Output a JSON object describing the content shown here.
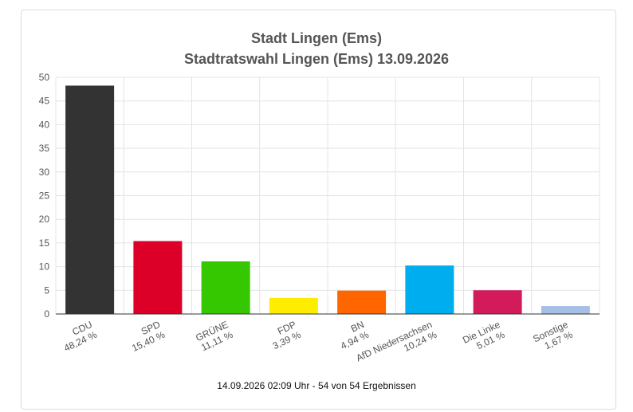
{
  "title": "Stadt Lingen (Ems)",
  "subtitle": "Stadtratswahl Lingen (Ems) 13.09.2026",
  "footer": "14.09.2026 02:09 Uhr - 54 von 54 Ergebnissen",
  "chart_data": {
    "type": "bar",
    "title": "Stadt Lingen (Ems)",
    "subtitle": "Stadtratswahl Lingen (Ems) 13.09.2026",
    "categories": [
      "CDU",
      "SPD",
      "GRÜNE",
      "FDP",
      "BN",
      "AfD Niedersachsen",
      "Die Linke",
      "Sonstige"
    ],
    "value_labels": [
      "48,24 %",
      "15,40 %",
      "11,11 %",
      "3,39 %",
      "4,94 %",
      "10,24 %",
      "5,01 %",
      "1,67 %"
    ],
    "values": [
      48.24,
      15.4,
      11.11,
      3.39,
      4.94,
      10.24,
      5.01,
      1.67
    ],
    "colors": [
      "#333333",
      "#dc0029",
      "#35c800",
      "#ffed00",
      "#ff6600",
      "#00aeef",
      "#d31b5c",
      "#a6bfe5"
    ],
    "ylim": [
      0,
      50
    ],
    "yticks": [
      0,
      5,
      10,
      15,
      20,
      25,
      30,
      35,
      40,
      45,
      50
    ],
    "grid": true,
    "xlabel": "",
    "ylabel": ""
  }
}
